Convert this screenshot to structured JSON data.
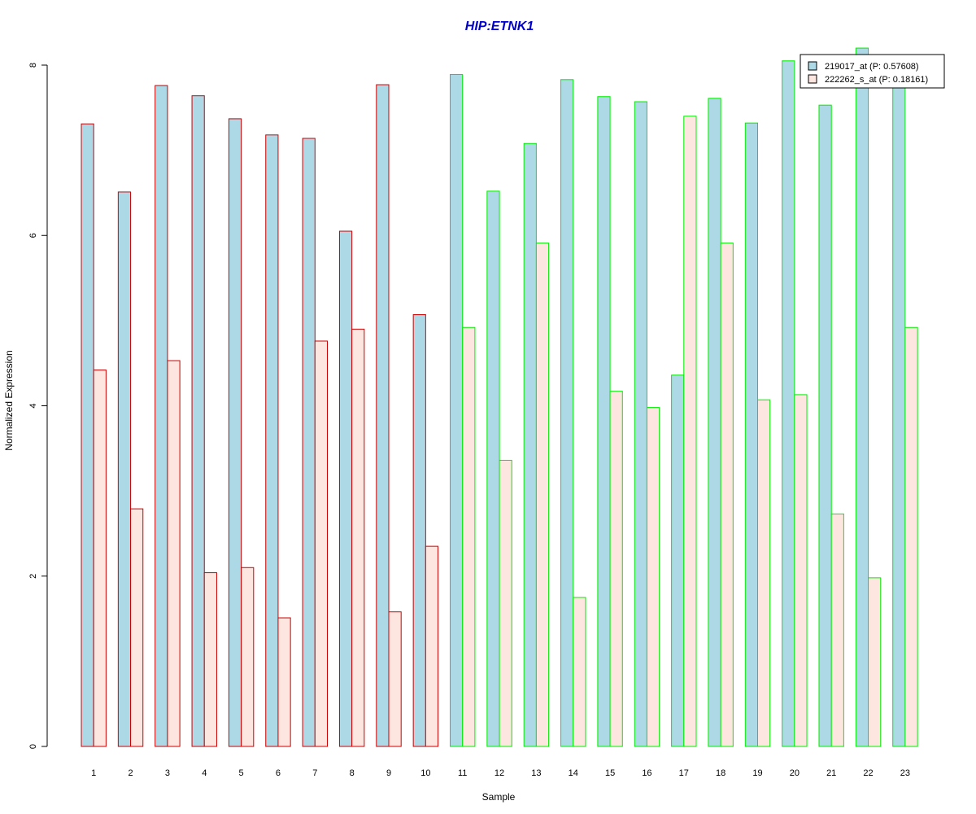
{
  "chart_data": {
    "type": "bar",
    "title": "HIP:ETNK1",
    "xlabel": "Sample",
    "ylabel": "Normalized Expression",
    "ylim": [
      0,
      8
    ],
    "yticks": [
      0,
      2,
      4,
      6,
      8
    ],
    "grid": false,
    "legend_position": "top-right",
    "categories": [
      "1",
      "2",
      "3",
      "4",
      "5",
      "6",
      "7",
      "8",
      "9",
      "10",
      "11",
      "12",
      "13",
      "14",
      "15",
      "16",
      "17",
      "18",
      "19",
      "20",
      "21",
      "22",
      "23"
    ],
    "series": [
      {
        "name": "219017_at (P: 0.57608)",
        "fill": "#add8e6",
        "values": [
          7.31,
          6.51,
          7.76,
          7.64,
          7.37,
          7.18,
          7.14,
          6.05,
          7.77,
          5.07,
          7.89,
          6.52,
          7.08,
          7.83,
          7.63,
          7.57,
          4.36,
          7.61,
          7.32,
          8.05,
          7.53,
          8.2,
          7.8
        ]
      },
      {
        "name": "222262_s_at (P: 0.18161)",
        "fill": "#fde5e0",
        "values": [
          4.42,
          2.79,
          4.53,
          2.04,
          2.1,
          1.51,
          4.76,
          4.9,
          1.58,
          2.35,
          4.92,
          3.36,
          5.91,
          1.75,
          4.17,
          3.98,
          7.4,
          5.91,
          4.07,
          4.13,
          2.73,
          1.98,
          4.92
        ]
      }
    ],
    "group_outline": [
      "#cc0000",
      "#cc0000",
      "#cc0000",
      "#cc0000",
      "#cc0000",
      "#cc0000",
      "#cc0000",
      "#cc0000",
      "#cc0000",
      "#cc0000",
      "#00ee00",
      "#00ee00",
      "#00ee00",
      "#00ee00",
      "#00ee00",
      "#00ee00",
      "#00ee00",
      "#00ee00",
      "#00ee00",
      "#00ee00",
      "#00ee00",
      "#00ee00",
      "#00ee00"
    ],
    "title_color": "#0000cc"
  }
}
